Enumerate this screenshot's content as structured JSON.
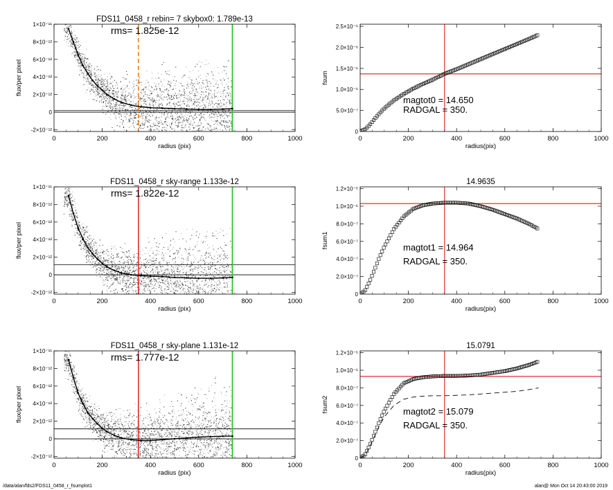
{
  "footer": {
    "path": "/data/alan/fds2/FDS11_0458_r_fsumplot1",
    "user_date": "alan@  Mon Oct 14 20:43:00 2019"
  },
  "colors": {
    "scatter_dark": "#303030",
    "scatter_light": "#a8a8a8",
    "profile": "#000000",
    "red_marker": "#e03030",
    "green_marker": "#30c030",
    "orange_marker": "#f08020"
  },
  "chart_data": [
    {
      "type": "scatter",
      "title": "FDS11_0458_r rebin= 7    skybox0:  1.789e-13",
      "rms_label": "rms= 1.825e-12",
      "xlabel": "radius (pix)",
      "ylabel": "flux/per pixel",
      "xlim": [
        0,
        1000
      ],
      "ylim": [
        -2.2e-12,
        1e-11
      ],
      "x_ticks": [
        "0",
        "200",
        "400",
        "600",
        "800",
        "1000"
      ],
      "y_ticks": [
        {
          "label": "-2×10⁻¹²",
          "value": -2e-12
        },
        {
          "label": "0",
          "value": 0
        },
        {
          "label": "2×10⁻¹²",
          "value": 2e-12
        },
        {
          "label": "4×10⁻¹²",
          "value": 4e-12
        },
        {
          "label": "6×10⁻¹²",
          "value": 6e-12
        },
        {
          "label": "8×10⁻¹²",
          "value": 8e-12
        },
        {
          "label": "1×10⁻¹¹",
          "value": 1e-11
        }
      ],
      "hlines": [
        0,
        1.8e-13
      ],
      "vline_green": 740,
      "vline_orange_dashed": 350,
      "profile": {
        "x": [
          60,
          80,
          100,
          120,
          140,
          160,
          180,
          200,
          220,
          250,
          280,
          320,
          360,
          400,
          450,
          500,
          550,
          600,
          650,
          700,
          740
        ],
        "y": [
          9.5e-12,
          8e-12,
          6.5e-12,
          5.3e-12,
          4.4e-12,
          3.6e-12,
          3e-12,
          2.5e-12,
          2e-12,
          1.5e-12,
          1.1e-12,
          8e-13,
          6e-13,
          5e-13,
          4.5e-13,
          4e-13,
          3.5e-13,
          3e-13,
          3e-13,
          3.5e-13,
          4e-13
        ]
      }
    },
    {
      "type": "line",
      "title": "",
      "annotation": [
        "magtot0 = 14.650",
        "RADGAL =    350."
      ],
      "xlabel": "radius(pix)",
      "ylabel": "fsum",
      "xlim": [
        0,
        1000
      ],
      "ylim": [
        0,
        2.55e-06
      ],
      "x_ticks": [
        "0",
        "200",
        "400",
        "600",
        "800",
        "1000"
      ],
      "y_ticks": [
        {
          "label": "0",
          "value": 0
        },
        {
          "label": "5.0×10⁻⁷",
          "value": 5e-07
        },
        {
          "label": "1.0×10⁻⁶",
          "value": 1e-06
        },
        {
          "label": "1.5×10⁻⁶",
          "value": 1.5e-06
        },
        {
          "label": "2.0×10⁻⁶",
          "value": 2e-06
        },
        {
          "label": "2.5×10⁻⁶",
          "value": 2.5e-06
        }
      ],
      "hline": 1.37e-06,
      "vline": 350,
      "series": [
        {
          "style": "open-squares",
          "x": [
            0,
            20,
            40,
            60,
            80,
            100,
            140,
            180,
            220,
            260,
            300,
            350,
            400,
            450,
            500,
            550,
            600,
            650,
            700,
            740
          ],
          "y": [
            0,
            5e-08,
            1.6e-07,
            3e-07,
            4.3e-07,
            5.5e-07,
            7.4e-07,
            8.9e-07,
            1.02e-06,
            1.13e-06,
            1.23e-06,
            1.37e-06,
            1.48e-06,
            1.6e-06,
            1.72e-06,
            1.84e-06,
            1.96e-06,
            2.08e-06,
            2.2e-06,
            2.3e-06
          ]
        }
      ]
    },
    {
      "type": "scatter",
      "title": "FDS11_0458_r sky-range  1.133e-12",
      "rms_label": "rms= 1.822e-12",
      "xlabel": "radius (pix)",
      "ylabel": "flux/per pixel",
      "xlim": [
        0,
        1000
      ],
      "ylim": [
        -2.2e-12,
        1e-11
      ],
      "x_ticks": [
        "0",
        "200",
        "400",
        "600",
        "800",
        "1000"
      ],
      "y_ticks": [
        {
          "label": "-2×10⁻¹²",
          "value": -2e-12
        },
        {
          "label": "0",
          "value": 0
        },
        {
          "label": "2×10⁻¹²",
          "value": 2e-12
        },
        {
          "label": "4×10⁻¹²",
          "value": 4e-12
        },
        {
          "label": "6×10⁻¹²",
          "value": 6e-12
        },
        {
          "label": "8×10⁻¹²",
          "value": 8e-12
        },
        {
          "label": "1×10⁻¹¹",
          "value": 1e-11
        }
      ],
      "hlines": [
        0,
        1.133e-12
      ],
      "vline_green": 740,
      "vline_red": 350,
      "profile": {
        "x": [
          60,
          80,
          100,
          120,
          140,
          160,
          180,
          200,
          220,
          250,
          280,
          320,
          360,
          400,
          450,
          500,
          550,
          600,
          650,
          700,
          740
        ],
        "y": [
          9e-12,
          7e-12,
          5.3e-12,
          4.1e-12,
          3.1e-12,
          2.4e-12,
          1.8e-12,
          1.3e-12,
          9e-13,
          5e-13,
          2e-13,
          0,
          -1e-13,
          -1.5e-13,
          -2e-13,
          -3e-13,
          -3.5e-13,
          -4e-13,
          -4e-13,
          -3.5e-13,
          -3e-13
        ]
      }
    },
    {
      "type": "line",
      "title": "14.9635",
      "annotation": [
        "magtot1 = 14.964",
        "RADGAL =    350."
      ],
      "xlabel": "radius(pix)",
      "ylabel": "fsum1",
      "xlim": [
        0,
        1000
      ],
      "ylim": [
        0,
        1.22e-06
      ],
      "x_ticks": [
        "0",
        "200",
        "400",
        "600",
        "800",
        "1000"
      ],
      "y_ticks": [
        {
          "label": "0",
          "value": 0
        },
        {
          "label": "2.0×10⁻⁷",
          "value": 2e-07
        },
        {
          "label": "4.0×10⁻⁷",
          "value": 4e-07
        },
        {
          "label": "6.0×10⁻⁷",
          "value": 6e-07
        },
        {
          "label": "8.0×10⁻⁷",
          "value": 8e-07
        },
        {
          "label": "1.0×10⁻⁶",
          "value": 1e-06
        },
        {
          "label": "1.2×10⁻⁶",
          "value": 1.2e-06
        }
      ],
      "hline": 1.03e-06,
      "vline": 350,
      "series": [
        {
          "style": "open-squares",
          "x": [
            0,
            20,
            40,
            60,
            80,
            100,
            140,
            180,
            220,
            260,
            300,
            350,
            400,
            450,
            500,
            550,
            600,
            650,
            700,
            740
          ],
          "y": [
            0,
            4e-08,
            1.5e-07,
            2.8e-07,
            4.2e-07,
            5.4e-07,
            7.4e-07,
            8.8e-07,
            9.7e-07,
            1.01e-06,
            1.03e-06,
            1.04e-06,
            1.04e-06,
            1.03e-06,
            1e-06,
            9.6e-07,
            9.1e-07,
            8.6e-07,
            8e-07,
            7.4e-07
          ]
        }
      ]
    },
    {
      "type": "scatter",
      "title": "FDS11_0458_r sky-plane  1.131e-12",
      "rms_label": "rms= 1.777e-12",
      "xlabel": "radius (pix)",
      "ylabel": "flux/per pixel",
      "xlim": [
        0,
        1000
      ],
      "ylim": [
        -2.2e-12,
        1e-11
      ],
      "x_ticks": [
        "0",
        "200",
        "400",
        "600",
        "800",
        "1000"
      ],
      "y_ticks": [
        {
          "label": "-2×10⁻¹²",
          "value": -2e-12
        },
        {
          "label": "0",
          "value": 0
        },
        {
          "label": "2×10⁻¹²",
          "value": 2e-12
        },
        {
          "label": "4×10⁻¹²",
          "value": 4e-12
        },
        {
          "label": "6×10⁻¹²",
          "value": 6e-12
        },
        {
          "label": "8×10⁻¹²",
          "value": 8e-12
        },
        {
          "label": "1×10⁻¹¹",
          "value": 1e-11
        }
      ],
      "hlines": [
        0,
        1.131e-12
      ],
      "vline_green": 740,
      "vline_red": 350,
      "profile": {
        "x": [
          60,
          80,
          100,
          120,
          140,
          160,
          180,
          200,
          220,
          250,
          280,
          320,
          360,
          400,
          450,
          500,
          550,
          600,
          650,
          700,
          740
        ],
        "y": [
          9e-12,
          7e-12,
          5.2e-12,
          4e-12,
          3e-12,
          2.3e-12,
          1.7e-12,
          1.2e-12,
          8e-13,
          4e-13,
          1e-13,
          -1e-13,
          -2e-13,
          -2e-13,
          -1e-13,
          0,
          1e-13,
          2e-13,
          2.5e-13,
          3e-13,
          3e-13
        ]
      }
    },
    {
      "type": "line",
      "title": "15.0791",
      "annotation": [
        "magtot2 = 15.079",
        "RADGAL =    350."
      ],
      "xlabel": "radius(pix)",
      "ylabel": "fsum2",
      "xlim": [
        0,
        1000
      ],
      "ylim": [
        0,
        1.22e-06
      ],
      "x_ticks": [
        "0",
        "200",
        "400",
        "600",
        "800",
        "1000"
      ],
      "y_ticks": [
        {
          "label": "0",
          "value": 0
        },
        {
          "label": "2.0×10⁻⁷",
          "value": 2e-07
        },
        {
          "label": "4.0×10⁻⁷",
          "value": 4e-07
        },
        {
          "label": "6.0×10⁻⁷",
          "value": 6e-07
        },
        {
          "label": "8.0×10⁻⁷",
          "value": 8e-07
        },
        {
          "label": "1.0×10⁻⁶",
          "value": 1e-06
        },
        {
          "label": "1.2×10⁻⁶",
          "value": 1.2e-06
        }
      ],
      "hline": 9.3e-07,
      "vline": 350,
      "series": [
        {
          "style": "open-squares",
          "x": [
            0,
            20,
            40,
            60,
            80,
            100,
            140,
            180,
            220,
            260,
            300,
            350,
            400,
            450,
            500,
            550,
            600,
            650,
            700,
            740
          ],
          "y": [
            0,
            4e-08,
            1.5e-07,
            2.8e-07,
            4.2e-07,
            5.4e-07,
            7.3e-07,
            8.5e-07,
            9e-07,
            9.2e-07,
            9.3e-07,
            9.35e-07,
            9.35e-07,
            9.4e-07,
            9.5e-07,
            9.7e-07,
            9.9e-07,
            1.02e-06,
            1.06e-06,
            1.1e-06
          ]
        },
        {
          "style": "dashed",
          "x": [
            0,
            20,
            40,
            60,
            80,
            100,
            140,
            180,
            220,
            260,
            300,
            350,
            400,
            450,
            500,
            550,
            600,
            650,
            700,
            740
          ],
          "y": [
            0,
            3.5e-08,
            1.3e-07,
            2.5e-07,
            3.7e-07,
            4.7e-07,
            6e-07,
            6.7e-07,
            6.95e-07,
            7.05e-07,
            7.1e-07,
            7.1e-07,
            7.15e-07,
            7.2e-07,
            7.3e-07,
            7.4e-07,
            7.5e-07,
            7.6e-07,
            7.8e-07,
            8e-07
          ]
        }
      ]
    }
  ]
}
